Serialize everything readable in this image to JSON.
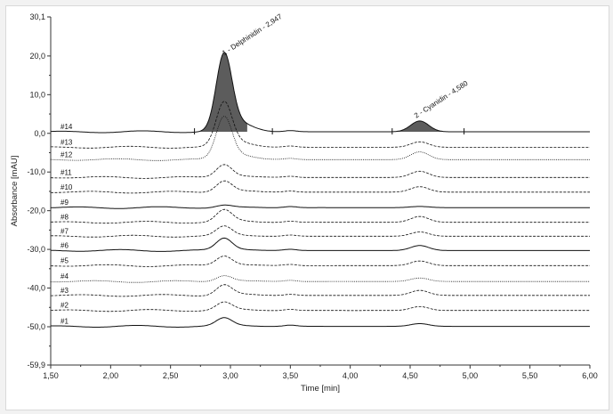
{
  "chart_data": {
    "type": "line",
    "xlabel": "Time [min]",
    "ylabel": "Absorbance [mAU]",
    "xlim": [
      1.5,
      6.0
    ],
    "ylim": [
      -59.9,
      30.1
    ],
    "x_ticks": [
      "1,50",
      "2,00",
      "2,50",
      "3,00",
      "3,50",
      "4,00",
      "4,50",
      "5,00",
      "5,50",
      "6,00"
    ],
    "y_ticks": [
      {
        "value": 30.1,
        "label": "30,1"
      },
      {
        "value": 20.0,
        "label": "20,0"
      },
      {
        "value": 10.0,
        "label": "10,0"
      },
      {
        "value": 0.0,
        "label": "0,0"
      },
      {
        "value": -10.0,
        "label": "-10,0"
      },
      {
        "value": -20.0,
        "label": "-20,0"
      },
      {
        "value": -30.0,
        "label": "-30,0"
      },
      {
        "value": -40.0,
        "label": "-40,0"
      },
      {
        "value": -50.0,
        "label": "-50,0"
      },
      {
        "value": -59.9,
        "label": "-59,9"
      }
    ],
    "peaks": [
      {
        "label": "1 - Delphinidin - 2,947",
        "rt": 2.947,
        "height": 19.0
      },
      {
        "label": "2 - Cyanidin - 4,580",
        "rt": 4.58,
        "height": 2.8
      }
    ],
    "series": [
      {
        "name": "#14",
        "baseline": 0.4,
        "h1": 19.0,
        "h2": 2.8,
        "style": "solid-fill"
      },
      {
        "name": "#13",
        "baseline": -3.6,
        "h1": 11.0,
        "h2": 1.4,
        "style": "dash"
      },
      {
        "name": "#12",
        "baseline": -6.8,
        "h1": 10.5,
        "h2": 2.0,
        "style": "dot"
      },
      {
        "name": "#11",
        "baseline": -11.4,
        "h1": 3.2,
        "h2": 1.6,
        "style": "dash"
      },
      {
        "name": "#10",
        "baseline": -15.2,
        "h1": 2.8,
        "h2": 1.4,
        "style": "dash"
      },
      {
        "name": "#9",
        "baseline": -19.2,
        "h1": 0.6,
        "h2": 0.3,
        "style": "solid"
      },
      {
        "name": "#8",
        "baseline": -23.0,
        "h1": 3.0,
        "h2": 1.5,
        "style": "dash"
      },
      {
        "name": "#7",
        "baseline": -26.6,
        "h1": 2.4,
        "h2": 1.1,
        "style": "dash"
      },
      {
        "name": "#6",
        "baseline": -30.3,
        "h1": 3.0,
        "h2": 1.3,
        "style": "solid"
      },
      {
        "name": "#5",
        "baseline": -34.2,
        "h1": 2.4,
        "h2": 1.2,
        "style": "dash"
      },
      {
        "name": "#4",
        "baseline": -38.3,
        "h1": 1.5,
        "h2": 0.9,
        "style": "dot"
      },
      {
        "name": "#3",
        "baseline": -41.9,
        "h1": 2.6,
        "h2": 1.3,
        "style": "dash"
      },
      {
        "name": "#2",
        "baseline": -45.8,
        "h1": 2.0,
        "h2": 1.0,
        "style": "dash"
      },
      {
        "name": "#1",
        "baseline": -49.9,
        "h1": 2.0,
        "h2": 0.7,
        "style": "solid"
      }
    ]
  },
  "colors": {
    "background": "#f2f2f2",
    "frame": "#ffffff",
    "trace": "#111111",
    "peak_fill": "#5c5c5c"
  }
}
